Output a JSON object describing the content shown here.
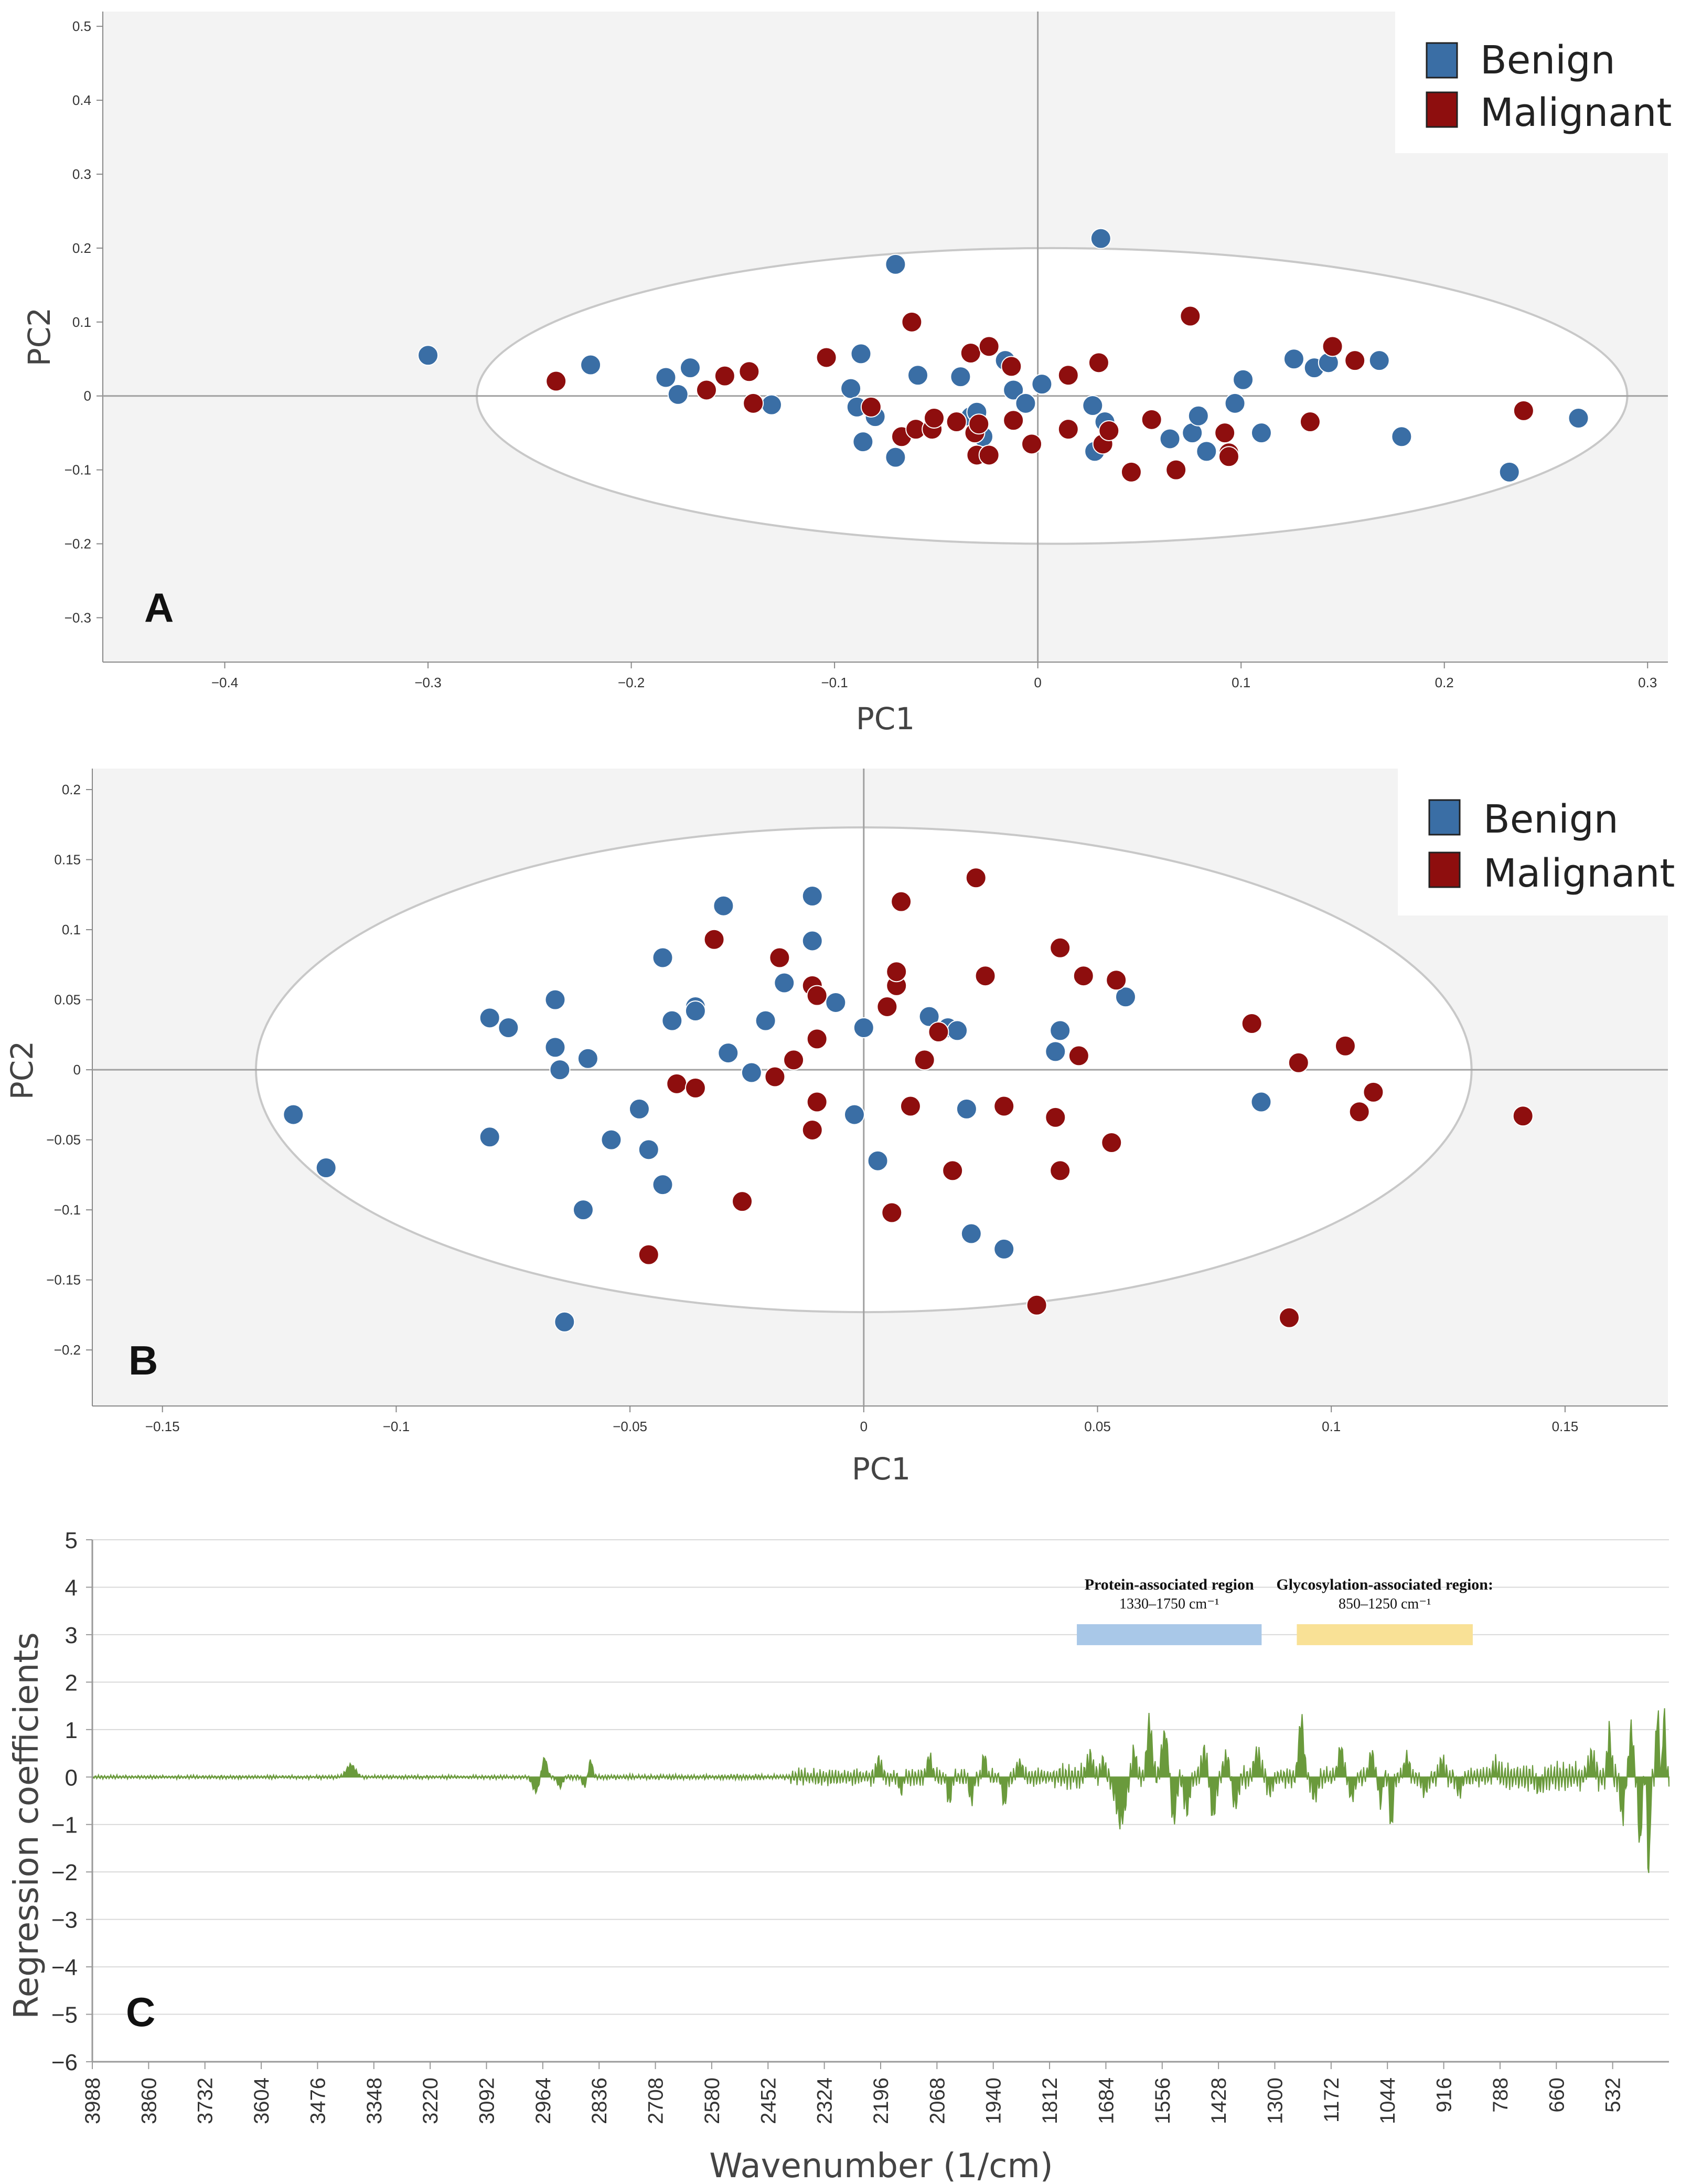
{
  "colors": {
    "benign": "#3a6ea5",
    "malignant": "#8e0e0e",
    "loadings": "#6a9a3c",
    "protein_band": "#a9c8e8",
    "glyco_band": "#f9e196",
    "plot_bg": "#f3f3f3",
    "ellipse": "#c8c8c8"
  },
  "chart_data": [
    {
      "type": "scatter",
      "panel_label": "A",
      "xlabel": "PC1",
      "ylabel": "PC2",
      "xlim": [
        -0.46,
        0.31
      ],
      "ylim": [
        -0.36,
        0.52
      ],
      "xticks": [
        -0.4,
        -0.3,
        -0.2,
        -0.1,
        0,
        0.1,
        0.2,
        0.3
      ],
      "xtick_labels": [
        "−0.4",
        "−0.3",
        "−0.2",
        "−0.1",
        "0",
        "0.1",
        "0.2",
        "0.3"
      ],
      "yticks": [
        0.5,
        0.4,
        0.3,
        0.2,
        0.1,
        0,
        -0.1,
        -0.2,
        -0.3
      ],
      "ytick_labels": [
        "0.5",
        "0.4",
        "0.3",
        "0.2",
        "0.1",
        "0",
        "−0.1",
        "−0.2",
        "−0.3"
      ],
      "ellipse": {
        "cx": 0.007,
        "cy": 0.0,
        "rx": 0.283,
        "ry": 0.2
      },
      "legend": [
        "Benign",
        "Malignant"
      ],
      "series": [
        {
          "name": "Benign",
          "points": [
            [
              -0.3,
              0.055
            ],
            [
              -0.22,
              0.042
            ],
            [
              -0.183,
              0.025
            ],
            [
              -0.177,
              0.002
            ],
            [
              -0.171,
              0.038
            ],
            [
              -0.131,
              -0.012
            ],
            [
              -0.092,
              0.01
            ],
            [
              -0.089,
              -0.015
            ],
            [
              -0.087,
              0.057
            ],
            [
              -0.086,
              -0.062
            ],
            [
              -0.08,
              -0.028
            ],
            [
              -0.07,
              0.178
            ],
            [
              -0.07,
              -0.083
            ],
            [
              -0.059,
              0.028
            ],
            [
              -0.038,
              0.026
            ],
            [
              -0.033,
              -0.028
            ],
            [
              -0.03,
              -0.022
            ],
            [
              -0.027,
              -0.055
            ],
            [
              -0.016,
              0.048
            ],
            [
              -0.012,
              0.008
            ],
            [
              -0.006,
              -0.01
            ],
            [
              0.002,
              0.016
            ],
            [
              0.027,
              -0.013
            ],
            [
              0.028,
              -0.075
            ],
            [
              0.031,
              0.213
            ],
            [
              0.033,
              -0.035
            ],
            [
              0.065,
              -0.058
            ],
            [
              0.076,
              -0.05
            ],
            [
              0.079,
              -0.027
            ],
            [
              0.083,
              -0.075
            ],
            [
              0.097,
              -0.01
            ],
            [
              0.101,
              0.022
            ],
            [
              0.11,
              -0.05
            ],
            [
              0.126,
              0.05
            ],
            [
              0.136,
              0.038
            ],
            [
              0.143,
              0.045
            ],
            [
              0.168,
              0.048
            ],
            [
              0.179,
              -0.055
            ],
            [
              0.232,
              -0.103
            ],
            [
              0.266,
              -0.03
            ]
          ]
        },
        {
          "name": "Malignant",
          "points": [
            [
              -0.237,
              0.02
            ],
            [
              -0.163,
              0.008
            ],
            [
              -0.154,
              0.027
            ],
            [
              -0.142,
              0.033
            ],
            [
              -0.14,
              -0.01
            ],
            [
              -0.104,
              0.052
            ],
            [
              -0.082,
              -0.015
            ],
            [
              -0.067,
              -0.055
            ],
            [
              -0.062,
              0.1
            ],
            [
              -0.06,
              -0.045
            ],
            [
              -0.052,
              -0.045
            ],
            [
              -0.051,
              -0.03
            ],
            [
              -0.04,
              -0.035
            ],
            [
              -0.033,
              0.058
            ],
            [
              -0.031,
              -0.05
            ],
            [
              -0.03,
              -0.08
            ],
            [
              -0.029,
              -0.038
            ],
            [
              -0.024,
              0.067
            ],
            [
              -0.024,
              -0.08
            ],
            [
              -0.013,
              0.04
            ],
            [
              -0.012,
              -0.033
            ],
            [
              -0.003,
              -0.065
            ],
            [
              0.015,
              0.028
            ],
            [
              0.015,
              -0.045
            ],
            [
              0.03,
              0.045
            ],
            [
              0.032,
              -0.065
            ],
            [
              0.035,
              -0.047
            ],
            [
              0.056,
              -0.032
            ],
            [
              0.046,
              -0.103
            ],
            [
              0.068,
              -0.1
            ],
            [
              0.075,
              0.108
            ],
            [
              0.092,
              -0.05
            ],
            [
              0.094,
              -0.077
            ],
            [
              0.094,
              -0.082
            ],
            [
              0.134,
              -0.035
            ],
            [
              0.145,
              0.067
            ],
            [
              0.156,
              0.048
            ],
            [
              0.239,
              -0.02
            ]
          ]
        }
      ]
    },
    {
      "type": "scatter",
      "panel_label": "B",
      "xlabel": "PC1",
      "ylabel": "PC2",
      "xlim": [
        -0.165,
        0.172
      ],
      "ylim": [
        -0.24,
        0.215
      ],
      "xticks": [
        -0.15,
        -0.1,
        -0.05,
        0,
        0.05,
        0.1,
        0.15
      ],
      "xtick_labels": [
        "−0.15",
        "−0.1",
        "−0.05",
        "0",
        "0.05",
        "0.1",
        "0.15"
      ],
      "yticks": [
        0.2,
        0.15,
        0.1,
        0.05,
        0,
        -0.05,
        -0.1,
        -0.15,
        -0.2
      ],
      "ytick_labels": [
        "0.2",
        "0.15",
        "0.1",
        "0.05",
        "0",
        "−0.05",
        "−0.1",
        "−0.15",
        "−0.2"
      ],
      "ellipse": {
        "cx": 0.0,
        "cy": 0.0,
        "rx": 0.13,
        "ry": 0.173
      },
      "legend": [
        "Benign",
        "Malignant"
      ],
      "series": [
        {
          "name": "Benign",
          "points": [
            [
              -0.122,
              -0.032
            ],
            [
              -0.115,
              -0.07
            ],
            [
              -0.08,
              -0.048
            ],
            [
              -0.08,
              0.037
            ],
            [
              -0.076,
              0.03
            ],
            [
              -0.066,
              0.05
            ],
            [
              -0.066,
              0.016
            ],
            [
              -0.065,
              0.0
            ],
            [
              -0.064,
              -0.18
            ],
            [
              -0.06,
              -0.1
            ],
            [
              -0.059,
              0.008
            ],
            [
              -0.054,
              -0.05
            ],
            [
              -0.048,
              -0.028
            ],
            [
              -0.046,
              -0.057
            ],
            [
              -0.043,
              0.08
            ],
            [
              -0.043,
              -0.082
            ],
            [
              -0.041,
              0.035
            ],
            [
              -0.036,
              0.045
            ],
            [
              -0.036,
              0.042
            ],
            [
              -0.03,
              0.117
            ],
            [
              -0.029,
              0.012
            ],
            [
              -0.024,
              -0.002
            ],
            [
              -0.021,
              0.035
            ],
            [
              -0.017,
              0.062
            ],
            [
              -0.011,
              0.092
            ],
            [
              -0.011,
              0.124
            ],
            [
              -0.006,
              0.048
            ],
            [
              -0.002,
              -0.032
            ],
            [
              0.0,
              0.03
            ],
            [
              0.003,
              -0.065
            ],
            [
              0.014,
              0.038
            ],
            [
              0.018,
              0.03
            ],
            [
              0.02,
              0.028
            ],
            [
              0.022,
              -0.028
            ],
            [
              0.023,
              -0.117
            ],
            [
              0.03,
              -0.128
            ],
            [
              0.041,
              0.013
            ],
            [
              0.042,
              0.028
            ],
            [
              0.056,
              0.052
            ],
            [
              0.085,
              -0.023
            ]
          ]
        },
        {
          "name": "Malignant",
          "points": [
            [
              -0.046,
              -0.132
            ],
            [
              -0.04,
              -0.01
            ],
            [
              -0.036,
              -0.013
            ],
            [
              -0.032,
              0.093
            ],
            [
              -0.026,
              -0.094
            ],
            [
              -0.019,
              -0.005
            ],
            [
              -0.018,
              0.08
            ],
            [
              -0.015,
              0.007
            ],
            [
              -0.011,
              0.06
            ],
            [
              -0.011,
              -0.043
            ],
            [
              -0.01,
              0.053
            ],
            [
              -0.01,
              0.022
            ],
            [
              -0.01,
              -0.023
            ],
            [
              0.005,
              0.045
            ],
            [
              0.006,
              -0.102
            ],
            [
              0.007,
              0.06
            ],
            [
              0.007,
              0.07
            ],
            [
              0.008,
              0.12
            ],
            [
              0.01,
              -0.026
            ],
            [
              0.013,
              0.007
            ],
            [
              0.016,
              0.027
            ],
            [
              0.019,
              -0.072
            ],
            [
              0.024,
              0.137
            ],
            [
              0.026,
              0.067
            ],
            [
              0.03,
              -0.026
            ],
            [
              0.037,
              -0.168
            ],
            [
              0.041,
              -0.034
            ],
            [
              0.042,
              0.087
            ],
            [
              0.042,
              -0.072
            ],
            [
              0.046,
              0.01
            ],
            [
              0.047,
              0.067
            ],
            [
              0.053,
              -0.052
            ],
            [
              0.054,
              0.064
            ],
            [
              0.083,
              0.033
            ],
            [
              0.091,
              -0.177
            ],
            [
              0.093,
              0.005
            ],
            [
              0.103,
              0.017
            ],
            [
              0.106,
              -0.03
            ],
            [
              0.109,
              -0.016
            ],
            [
              0.141,
              -0.033
            ]
          ]
        }
      ]
    },
    {
      "type": "line",
      "panel_label": "C",
      "xlabel": "Wavenumber (1/cm)",
      "ylabel": "Regression coefficients",
      "xlim": [
        3988,
        404
      ],
      "ylim": [
        -6,
        5
      ],
      "yticks": [
        5,
        4,
        3,
        2,
        1,
        0,
        -1,
        -2,
        -3,
        -4,
        -5,
        -6
      ],
      "ytick_labels": [
        "5",
        "4",
        "3",
        "2",
        "1",
        "0",
        "−1",
        "−2",
        "−3",
        "−4",
        "−5",
        "−6"
      ],
      "xticks": [
        3988,
        3860,
        3732,
        3604,
        3476,
        3348,
        3220,
        3092,
        2964,
        2836,
        2708,
        2580,
        2452,
        2324,
        2196,
        2068,
        1940,
        1812,
        1684,
        1556,
        1428,
        1300,
        1172,
        1044,
        916,
        788,
        660,
        532
      ],
      "xtick_labels": [
        "3988",
        "3860",
        "3732",
        "3604",
        "3476",
        "3348",
        "3220",
        "3092",
        "2964",
        "2836",
        "2708",
        "2580",
        "2452",
        "2324",
        "2196",
        "2068",
        "1940",
        "1812",
        "1684",
        "1556",
        "1428",
        "1300",
        "1172",
        "1044",
        "916",
        "788",
        "660",
        "532"
      ],
      "regions": [
        {
          "title": "Protein-associated region",
          "range_label": "1330–1750 cm⁻¹",
          "from": 1750,
          "to": 1330,
          "y": 3.0
        },
        {
          "title": "Glycosylation-associated region:",
          "range_label": "850–1250 cm⁻¹",
          "from": 1250,
          "to": 850,
          "y": 3.0
        }
      ],
      "features": [
        [
          3400,
          0.25,
          14
        ],
        [
          2960,
          0.4,
          8
        ],
        [
          2980,
          -0.3,
          10
        ],
        [
          2925,
          -0.2,
          8
        ],
        [
          2855,
          0.35,
          6
        ],
        [
          2870,
          -0.2,
          6
        ],
        [
          2200,
          0.35,
          8
        ],
        [
          2150,
          -0.3,
          6
        ],
        [
          2085,
          0.4,
          8
        ],
        [
          2040,
          -0.5,
          6
        ],
        [
          1990,
          -0.5,
          6
        ],
        [
          1960,
          0.45,
          6
        ],
        [
          1915,
          -0.6,
          6
        ],
        [
          1880,
          0.3,
          8
        ],
        [
          1720,
          0.4,
          10
        ],
        [
          1690,
          0.3,
          8
        ],
        [
          1650,
          -0.9,
          15
        ],
        [
          1620,
          0.5,
          8
        ],
        [
          1585,
          1.1,
          8
        ],
        [
          1550,
          0.9,
          10
        ],
        [
          1530,
          -0.9,
          8
        ],
        [
          1500,
          -0.7,
          8
        ],
        [
          1460,
          0.5,
          8
        ],
        [
          1440,
          -0.8,
          8
        ],
        [
          1410,
          0.4,
          8
        ],
        [
          1390,
          -0.6,
          8
        ],
        [
          1340,
          0.5,
          10
        ],
        [
          1310,
          -0.3,
          8
        ],
        [
          1240,
          1.2,
          8
        ],
        [
          1210,
          -0.4,
          8
        ],
        [
          1150,
          0.6,
          8
        ],
        [
          1125,
          -0.4,
          8
        ],
        [
          1080,
          0.5,
          8
        ],
        [
          1060,
          -0.5,
          6
        ],
        [
          1035,
          -1.1,
          5
        ],
        [
          1000,
          0.4,
          8
        ],
        [
          960,
          -0.3,
          8
        ],
        [
          920,
          0.3,
          8
        ],
        [
          880,
          -0.3,
          8
        ],
        [
          800,
          0.2,
          8
        ],
        [
          700,
          -0.2,
          10
        ],
        [
          580,
          0.4,
          10
        ],
        [
          540,
          0.9,
          6
        ],
        [
          510,
          -0.8,
          6
        ],
        [
          490,
          1.0,
          6
        ],
        [
          470,
          -1.5,
          5
        ],
        [
          450,
          -2.1,
          4
        ],
        [
          430,
          1.3,
          5
        ],
        [
          415,
          1.4,
          4
        ]
      ]
    }
  ]
}
